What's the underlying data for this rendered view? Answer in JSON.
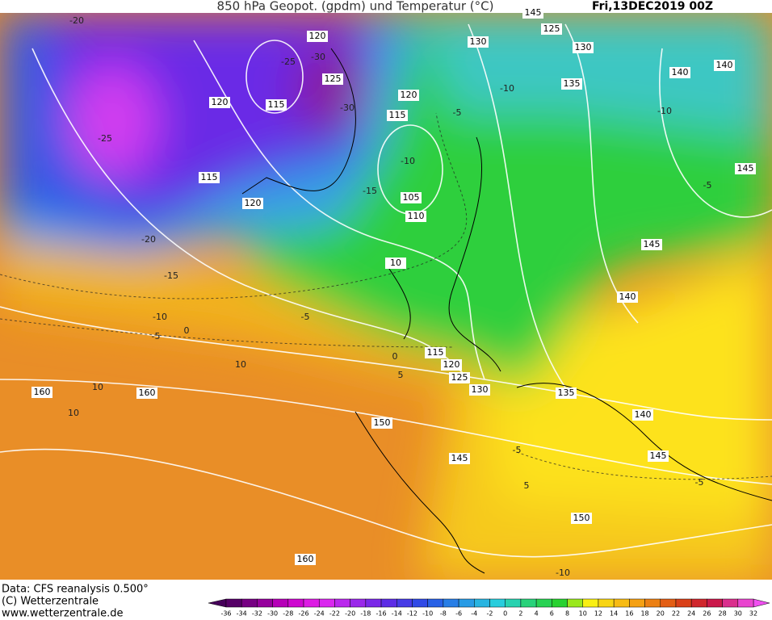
{
  "header": {
    "title": "850 hPa Geopot. (gpdm) und Temperatur (°C)",
    "date": "Fri,13DEC2019 00Z"
  },
  "footer": {
    "source": "Data: CFS reanalysis 0.500°",
    "copyright": "(C) Wetterzentrale",
    "url": "www.wetterzentrale.de"
  },
  "colorbar": {
    "ticks": [
      -36,
      -34,
      -32,
      -30,
      -28,
      -26,
      -24,
      -22,
      -20,
      -18,
      -16,
      -14,
      -12,
      -10,
      -8,
      -6,
      -4,
      -2,
      0,
      2,
      4,
      6,
      8,
      10,
      12,
      14,
      16,
      18,
      20,
      22,
      24,
      26,
      28,
      30,
      32
    ]
  },
  "contour_labels": {
    "geopotential": [
      120,
      130,
      125,
      130,
      140,
      140,
      125,
      120,
      115,
      135,
      120,
      115,
      115,
      120,
      105,
      110,
      145,
      145,
      10,
      140,
      115,
      120,
      125,
      130,
      135,
      160,
      160,
      150,
      140,
      145,
      145,
      150,
      160,
      145
    ],
    "temperature": [
      -20,
      -25,
      -30,
      -30,
      -25,
      -20,
      -15,
      -10,
      -5,
      0,
      -5,
      0,
      5,
      10,
      10,
      10,
      -10,
      -5,
      -10,
      -15,
      -10,
      -5,
      -5,
      -5,
      5,
      -10
    ]
  }
}
